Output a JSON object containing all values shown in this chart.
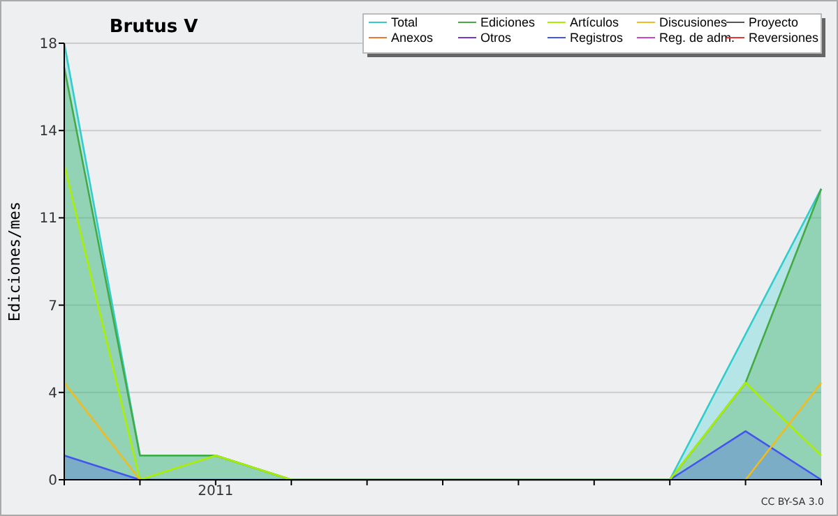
{
  "chart_data": {
    "type": "line",
    "title": "Brutus V",
    "ylabel": "Ediciones/mes",
    "categories": [
      null,
      null,
      "2011",
      null,
      null,
      null,
      null,
      null,
      null,
      null,
      null
    ],
    "series": [
      {
        "name": "Total",
        "type": "area",
        "color": "#33cccc",
        "values": [
          18,
          1,
          1,
          0,
          0,
          0,
          0,
          0,
          0,
          6,
          12
        ]
      },
      {
        "name": "Ediciones",
        "type": "area",
        "color": "#44aa44",
        "values": [
          17,
          1,
          1,
          0,
          0,
          0,
          0,
          0,
          0,
          4,
          12
        ]
      },
      {
        "name": "Artículos",
        "color": "#aaee00",
        "values": [
          13,
          0,
          1,
          0,
          0,
          0,
          0,
          0,
          0,
          4,
          1
        ]
      },
      {
        "name": "Discusiones",
        "color": "#eebb22",
        "values": [
          4,
          0,
          null,
          null,
          null,
          null,
          null,
          null,
          null,
          0,
          4
        ]
      },
      {
        "name": "Proyecto",
        "color": "#555555",
        "values": [
          null,
          null,
          null,
          null,
          null,
          null,
          null,
          null,
          null,
          null,
          null
        ]
      },
      {
        "name": "Anexos",
        "color": "#ee7733",
        "values": [
          null,
          null,
          null,
          null,
          null,
          null,
          null,
          null,
          null,
          null,
          null
        ]
      },
      {
        "name": "Otros",
        "color": "#7733cc",
        "values": [
          null,
          null,
          null,
          null,
          null,
          null,
          null,
          null,
          null,
          null,
          null
        ]
      },
      {
        "name": "Registros",
        "type": "area",
        "color": "#4455ee",
        "values": [
          1,
          0,
          0,
          0,
          0,
          0,
          0,
          0,
          0,
          2,
          0
        ]
      },
      {
        "name": "Reg. de adm.",
        "color": "#cc44cc",
        "values": [
          null,
          null,
          null,
          null,
          null,
          null,
          null,
          null,
          null,
          null,
          null
        ]
      },
      {
        "name": "Reversiones",
        "color": "#ee3333",
        "values": [
          null,
          null,
          null,
          null,
          null,
          null,
          null,
          null,
          null,
          null,
          null
        ]
      }
    ],
    "ylim": [
      0,
      18
    ],
    "yticks": [
      0,
      {
        "value": 3.6,
        "label": "4"
      },
      {
        "value": 7.2,
        "label": "7"
      },
      {
        "value": 10.8,
        "label": "11"
      },
      {
        "value": 14.4,
        "label": "14"
      },
      18
    ],
    "grid": "y",
    "legend": "top right",
    "annotations": [
      "CC BY-SA 3.0"
    ]
  }
}
